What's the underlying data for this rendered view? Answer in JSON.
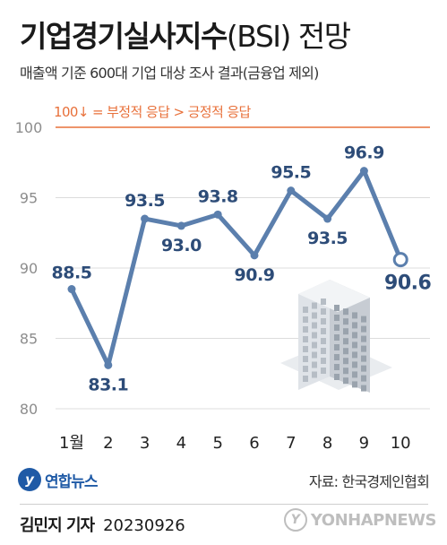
{
  "header": {
    "title_main": "기업경기실사지수",
    "title_paren": "(BSI) 전망",
    "subtitle": "매출액 기준 600대 기업 대상 조사 결과(금융업 제외)",
    "note": "100↓ = 부정적 응답 > 긍정적 응답"
  },
  "chart_data": {
    "type": "line",
    "title": "기업경기실사지수(BSI) 전망",
    "categories": [
      "1월",
      "2",
      "3",
      "4",
      "5",
      "6",
      "7",
      "8",
      "9",
      "10"
    ],
    "series": [
      {
        "values": [
          88.5,
          83.1,
          93.5,
          93.0,
          93.8,
          90.9,
          95.5,
          93.5,
          96.9,
          90.6
        ],
        "labels": [
          "88.5",
          "83.1",
          "93.5",
          "93.0",
          "93.8",
          "90.9",
          "95.5",
          "93.5",
          "96.9",
          "90.6"
        ]
      }
    ],
    "ylim": [
      80,
      100
    ],
    "yticks": [
      80,
      85,
      90,
      95,
      100
    ],
    "ytick_labels": [
      "80",
      "85",
      "90",
      "95",
      "100"
    ],
    "grid": true,
    "highlight_last_point": true,
    "reference_line": 100,
    "colors": {
      "line": "#5b7fad",
      "marker": "#5b7fad",
      "marker_highlight_fill": "#ffffff",
      "label": "#2d4c78",
      "reference": "#e8703a",
      "grid": "#dcdcdc",
      "tick": "#8d8d8d"
    }
  },
  "footer": {
    "logo_mark": "y",
    "logo_text": "연합뉴스",
    "source": "자료: 한국경제인협회",
    "byline_name": "김민지 기자",
    "byline_date": "20230926",
    "watermark_mark": "Y",
    "watermark_text": "YONHAPNEWS"
  }
}
